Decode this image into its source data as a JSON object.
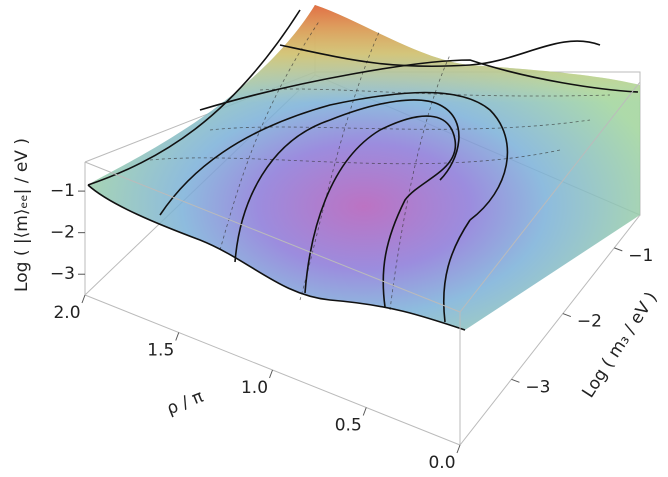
{
  "chart_data": {
    "type": "surface3d",
    "xlabel": "ρ / π",
    "ylabel": "Log ( m₃ / eV )",
    "zlabel": "Log ( |⟨m⟩ₑₑ| / eV )",
    "xlim": [
      0,
      2
    ],
    "xticks": [
      {
        "value": 0,
        "label": "0.0"
      },
      {
        "value": 0.5,
        "label": "0.5"
      },
      {
        "value": 1,
        "label": "1.0"
      },
      {
        "value": 1.5,
        "label": "1.5"
      },
      {
        "value": 2,
        "label": "2.0"
      }
    ],
    "ylim": [
      -4,
      -0.5
    ],
    "yticks": [
      {
        "value": -3,
        "label": "−3"
      },
      {
        "value": -2,
        "label": "−2"
      },
      {
        "value": -1,
        "label": "−1"
      }
    ],
    "zlim": [
      -3.5,
      -0.3
    ],
    "zticks": [
      {
        "value": -3,
        "label": "−3"
      },
      {
        "value": -2,
        "label": "−2"
      },
      {
        "value": -1,
        "label": "−1"
      }
    ]
  }
}
